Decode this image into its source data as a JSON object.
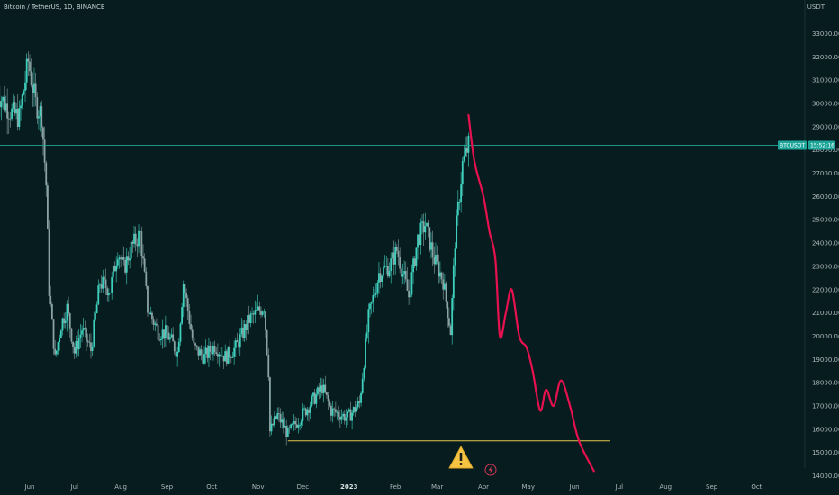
{
  "header": {
    "symbol_title": "Bitcoin / TetherUS, 1D, BINANCE",
    "currency": "USDT"
  },
  "price_badge": {
    "symbol": "BTCUSDT",
    "value_text": "15:52:16",
    "price": 28200
  },
  "colors": {
    "background": "#061c1f",
    "up": "#3fd0bd",
    "down": "#8aa3a4",
    "projection": "#e8114f",
    "support": "#e6c84a",
    "price_line": "#1fa69a",
    "badge": "#1fa69a"
  },
  "icons": {
    "warning": "warning-triangle-icon",
    "flash": "flash-circle-icon"
  },
  "chart_data": {
    "type": "candlestick",
    "title": "Bitcoin / TetherUS, 1D, BINANCE",
    "y_unit": "USDT",
    "ylim": [
      14000,
      33800
    ],
    "y_ticks": [
      "14000.00",
      "15000.00",
      "16000.00",
      "17000.00",
      "18000.00",
      "19000.00",
      "20000.00",
      "21000.00",
      "22000.00",
      "23000.00",
      "24000.00",
      "25000.00",
      "26000.00",
      "27000.00",
      "28000.00",
      "29000.00",
      "30000.00",
      "31000.00",
      "32000.00",
      "33000.00"
    ],
    "x_ticks": [
      {
        "label": "Jun",
        "date": "2022-06-01"
      },
      {
        "label": "Jul",
        "date": "2022-07-01"
      },
      {
        "label": "Aug",
        "date": "2022-08-01"
      },
      {
        "label": "Sep",
        "date": "2022-09-01"
      },
      {
        "label": "Oct",
        "date": "2022-10-01"
      },
      {
        "label": "Nov",
        "date": "2022-11-01"
      },
      {
        "label": "Dec",
        "date": "2022-12-01"
      },
      {
        "label": "2023",
        "date": "2023-01-01",
        "bold": true
      },
      {
        "label": "Feb",
        "date": "2023-02-01"
      },
      {
        "label": "Mar",
        "date": "2023-03-01"
      },
      {
        "label": "Apr",
        "date": "2023-04-01"
      },
      {
        "label": "May",
        "date": "2023-05-01"
      },
      {
        "label": "Jun",
        "date": "2023-06-01"
      },
      {
        "label": "Jul",
        "date": "2023-07-01"
      },
      {
        "label": "Aug",
        "date": "2023-08-01"
      },
      {
        "label": "Sep",
        "date": "2023-09-01"
      },
      {
        "label": "Oct",
        "date": "2023-10-01"
      }
    ],
    "candles_close_path": [
      [
        "2022-05-10",
        30500
      ],
      [
        "2022-05-15",
        30000
      ],
      [
        "2022-05-20",
        29600
      ],
      [
        "2022-05-25",
        29400
      ],
      [
        "2022-05-31",
        31800
      ],
      [
        "2022-06-05",
        30000
      ],
      [
        "2022-06-09",
        29500
      ],
      [
        "2022-06-12",
        26500
      ],
      [
        "2022-06-14",
        22000
      ],
      [
        "2022-06-18",
        19000
      ],
      [
        "2022-06-22",
        20500
      ],
      [
        "2022-06-26",
        21200
      ],
      [
        "2022-07-01",
        19300
      ],
      [
        "2022-07-06",
        20300
      ],
      [
        "2022-07-12",
        19400
      ],
      [
        "2022-07-18",
        22300
      ],
      [
        "2022-07-25",
        22000
      ],
      [
        "2022-07-30",
        23700
      ],
      [
        "2022-08-03",
        22900
      ],
      [
        "2022-08-08",
        23800
      ],
      [
        "2022-08-14",
        24400
      ],
      [
        "2022-08-19",
        21200
      ],
      [
        "2022-08-26",
        20200
      ],
      [
        "2022-09-01",
        20100
      ],
      [
        "2022-09-08",
        19300
      ],
      [
        "2022-09-12",
        22300
      ],
      [
        "2022-09-19",
        19500
      ],
      [
        "2022-09-26",
        19100
      ],
      [
        "2022-10-03",
        19600
      ],
      [
        "2022-10-10",
        19100
      ],
      [
        "2022-10-17",
        19500
      ],
      [
        "2022-10-26",
        20700
      ],
      [
        "2022-11-05",
        21300
      ],
      [
        "2022-11-08",
        18500
      ],
      [
        "2022-11-09",
        15900
      ],
      [
        "2022-11-14",
        16600
      ],
      [
        "2022-11-21",
        15800
      ],
      [
        "2022-11-28",
        16400
      ],
      [
        "2022-12-05",
        17000
      ],
      [
        "2022-12-14",
        17800
      ],
      [
        "2022-12-20",
        16800
      ],
      [
        "2022-12-31",
        16500
      ],
      [
        "2023-01-08",
        17100
      ],
      [
        "2023-01-14",
        20800
      ],
      [
        "2023-01-21",
        22700
      ],
      [
        "2023-01-28",
        23000
      ],
      [
        "2023-02-02",
        23700
      ],
      [
        "2023-02-10",
        21700
      ],
      [
        "2023-02-16",
        24200
      ],
      [
        "2023-02-21",
        24800
      ],
      [
        "2023-02-27",
        23300
      ],
      [
        "2023-03-05",
        22400
      ],
      [
        "2023-03-10",
        20200
      ],
      [
        "2023-03-13",
        24100
      ],
      [
        "2023-03-18",
        27400
      ],
      [
        "2023-03-22",
        28200
      ]
    ],
    "support_level": 15500,
    "projection_path": [
      [
        "2023-03-22",
        29500
      ],
      [
        "2023-03-26",
        27500
      ],
      [
        "2023-04-01",
        26000
      ],
      [
        "2023-04-05",
        24500
      ],
      [
        "2023-04-09",
        23300
      ],
      [
        "2023-04-12",
        20000
      ],
      [
        "2023-04-16",
        21000
      ],
      [
        "2023-04-20",
        22000
      ],
      [
        "2023-04-25",
        20000
      ],
      [
        "2023-04-30",
        19500
      ],
      [
        "2023-05-04",
        18500
      ],
      [
        "2023-05-09",
        16800
      ],
      [
        "2023-05-13",
        17700
      ],
      [
        "2023-05-18",
        17000
      ],
      [
        "2023-05-23",
        18100
      ],
      [
        "2023-05-29",
        17000
      ],
      [
        "2023-06-04",
        15500
      ],
      [
        "2023-06-14",
        14200
      ]
    ]
  }
}
